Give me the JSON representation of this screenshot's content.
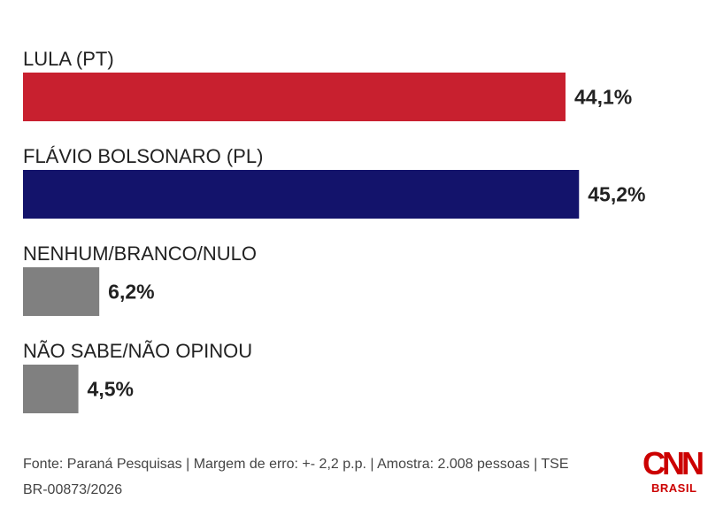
{
  "chart_data": {
    "type": "bar",
    "orientation": "horizontal",
    "categories": [
      "LULA (PT)",
      "FLÁVIO BOLSONARO (PL)",
      "NENHUM/BRANCO/NULO",
      "NÃO SABE/NÃO OPINOU"
    ],
    "values": [
      44.1,
      45.2,
      6.2,
      4.5
    ],
    "value_labels": [
      "44,1%",
      "45,2%",
      "6,2%",
      "4,5%"
    ],
    "colors": [
      "#c8202f",
      "#13136b",
      "#808080",
      "#808080"
    ],
    "title": "",
    "xlabel": "",
    "ylabel": "",
    "grid": false
  },
  "source": {
    "text": "Fonte: Paraná Pesquisas | Margem de erro: +- 2,2 p.p. | Amostra: 2.008 pessoas | TSE BR-00873/2026"
  },
  "logo": {
    "mark": "CNN",
    "sub": "BRASIL"
  }
}
